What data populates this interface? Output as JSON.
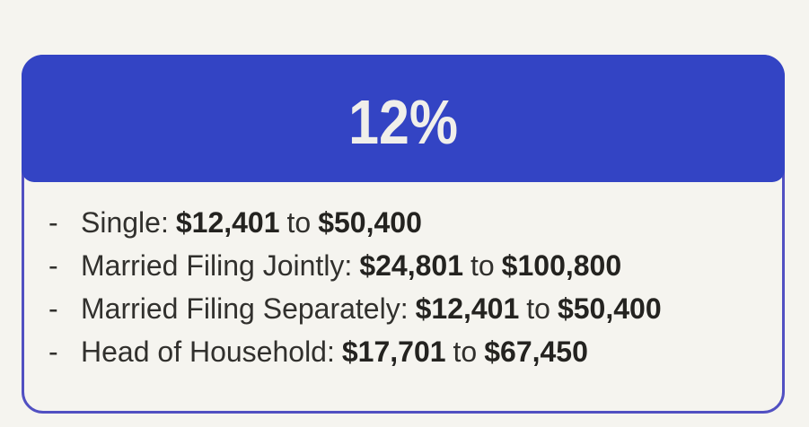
{
  "card": {
    "rate": "12%",
    "bullet": "-",
    "connector": "to",
    "brackets": [
      {
        "label": "Single:",
        "from": "$12,401",
        "to": "$50,400"
      },
      {
        "label": "Married Filing Jointly:",
        "from": "$24,801",
        "to": "$100,800"
      },
      {
        "label": "Married Filing Separately:",
        "from": "$12,401",
        "to": "$50,400"
      },
      {
        "label": "Head of Household:",
        "from": "$17,701",
        "to": "$67,450"
      }
    ]
  },
  "colors": {
    "background": "#f5f4ef",
    "header": "#3344c4",
    "border": "#5150c2",
    "rate_text": "#f0efea",
    "body_text": "#31302d"
  }
}
